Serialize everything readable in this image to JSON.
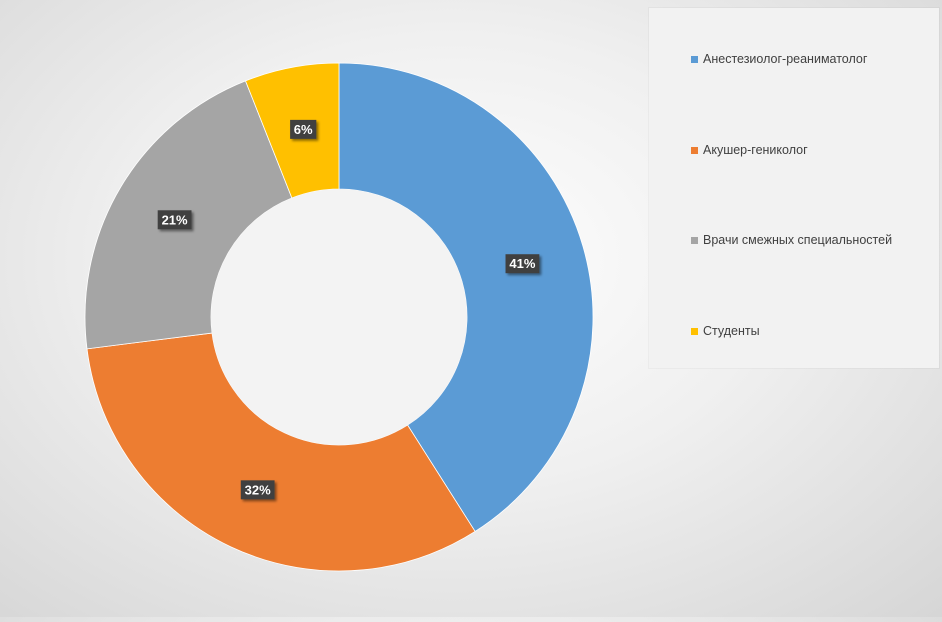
{
  "chart_data": {
    "type": "pie",
    "variant": "donut",
    "title": "",
    "categories": [
      "Анестезиолог-реаниматолог",
      "Акушер-гениколог",
      "Врачи смежных специальностей",
      "Студенты"
    ],
    "values": [
      41,
      32,
      21,
      6
    ],
    "labels": [
      "41%",
      "32%",
      "21%",
      "6%"
    ],
    "colors": [
      "#5b9bd5",
      "#ed7d31",
      "#a5a5a5",
      "#ffc000"
    ],
    "legend": {
      "position": "right",
      "items": [
        {
          "label": "Анестезиолог-реаниматолог",
          "color": "#5b9bd5"
        },
        {
          "label": "Акушер-гениколог",
          "color": "#ed7d31"
        },
        {
          "label": "Врачи смежных специальностей",
          "color": "#a5a5a5"
        },
        {
          "label": "Студенты",
          "color": "#ffc000"
        }
      ]
    }
  }
}
